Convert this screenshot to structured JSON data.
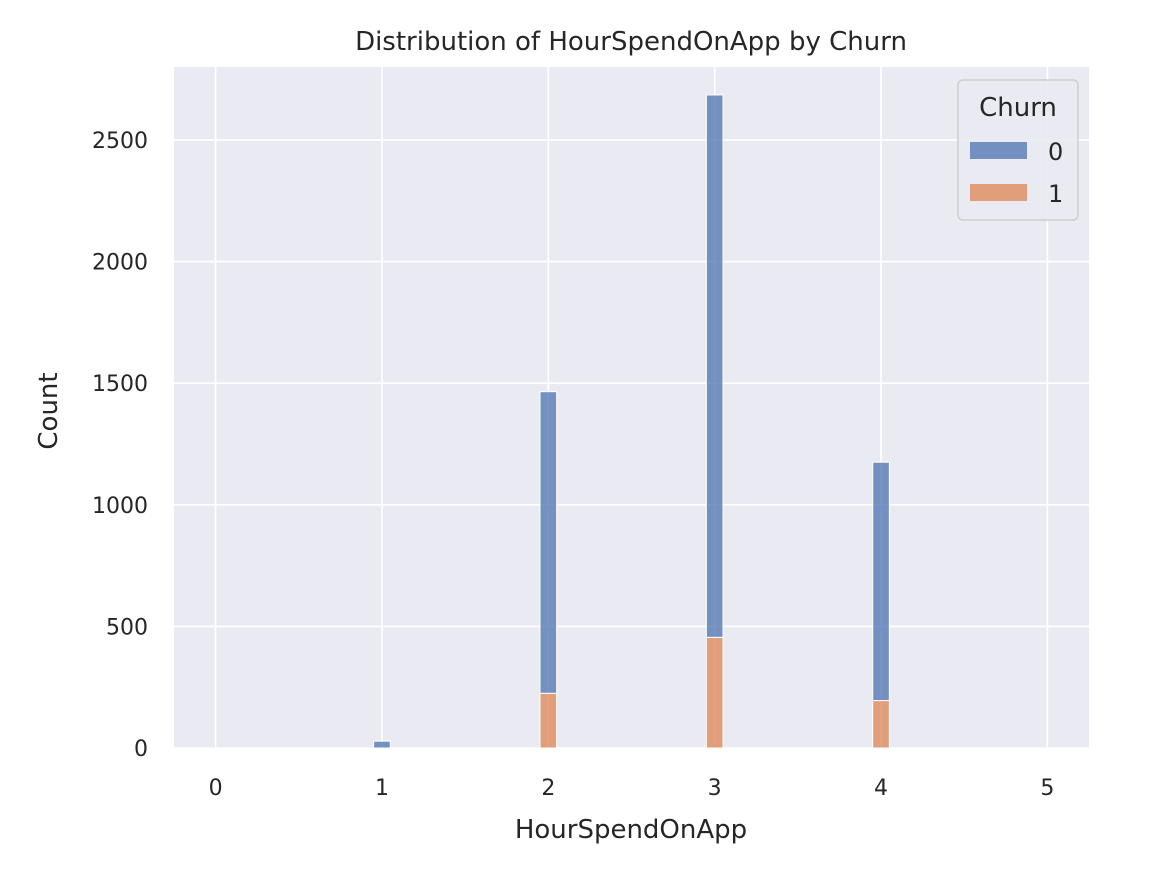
{
  "chart_data": {
    "type": "bar",
    "subtype": "stacked-histogram",
    "title": "Distribution of HourSpendOnApp by Churn",
    "xlabel": "HourSpendOnApp",
    "ylabel": "Count",
    "xlim": [
      -0.25,
      5.25
    ],
    "ylim": [
      0,
      2800
    ],
    "xticks": [
      0,
      1,
      2,
      3,
      4,
      5
    ],
    "yticks": [
      0,
      500,
      1000,
      1500,
      2000,
      2500
    ],
    "bin_width": 0.1,
    "grid": true,
    "legend": {
      "title": "Churn",
      "position": "top-right",
      "entries": [
        "0",
        "1"
      ]
    },
    "x": [
      0,
      1,
      2,
      3,
      4
    ],
    "series": [
      {
        "name": "0",
        "color": "#4c72b0",
        "values": [
          0,
          28,
          1240,
          2230,
          980
        ]
      },
      {
        "name": "1",
        "color": "#dd8452",
        "values": [
          0,
          0,
          225,
          455,
          195
        ]
      }
    ]
  },
  "colors": {
    "plot_background": "#eaeaf2",
    "grid": "#ffffff"
  }
}
